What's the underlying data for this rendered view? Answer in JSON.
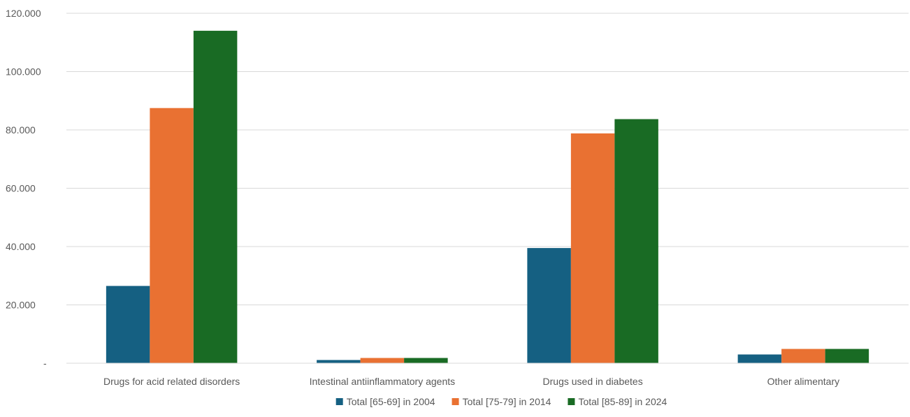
{
  "chart_data": {
    "type": "bar",
    "title": "",
    "xlabel": "",
    "ylabel": "",
    "categories": [
      "Drugs for acid related disorders",
      "Intestinal antiinflammatory agents",
      "Drugs used in diabetes",
      "Other alimentary"
    ],
    "series": [
      {
        "name": "Total [65-69] in 2004",
        "color": "#156082",
        "values": [
          26500,
          1100,
          39500,
          3000
        ]
      },
      {
        "name": "Total [75-79] in 2014",
        "color": "#E97132",
        "values": [
          87500,
          1800,
          78800,
          4900
        ]
      },
      {
        "name": "Total [85-89] in 2024",
        "color": "#196B24",
        "values": [
          114000,
          1800,
          83700,
          4900
        ]
      }
    ],
    "ylim": [
      0,
      120000
    ],
    "y_ticks": [
      0,
      20000,
      40000,
      60000,
      80000,
      100000,
      120000
    ],
    "y_tick_labels": [
      "-",
      "20.000",
      "40.000",
      "60.000",
      "80.000",
      "100.000",
      "120.000"
    ],
    "grid": true,
    "legend_position": "bottom"
  }
}
